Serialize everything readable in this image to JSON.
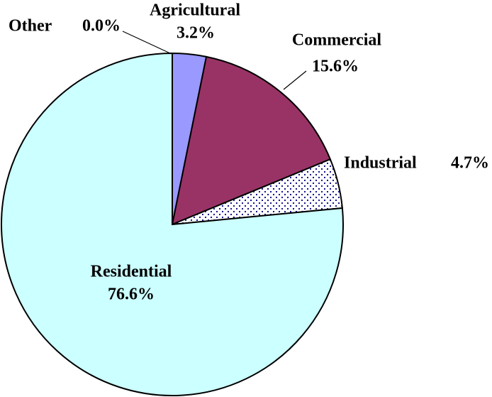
{
  "chart_data": {
    "type": "pie",
    "categories": [
      "Agricultural",
      "Commercial",
      "Industrial",
      "Residential",
      "Other"
    ],
    "values": [
      3.2,
      15.6,
      4.7,
      76.6,
      0.0
    ],
    "value_labels": [
      "3.2%",
      "15.6%",
      "4.7%",
      "76.6%",
      "0.0%"
    ],
    "colors": [
      "#9999ff",
      "#993366",
      "#ffffff",
      "#ccffff",
      "#ffffcc"
    ],
    "patterns": [
      null,
      null,
      "dots",
      null,
      null
    ]
  }
}
